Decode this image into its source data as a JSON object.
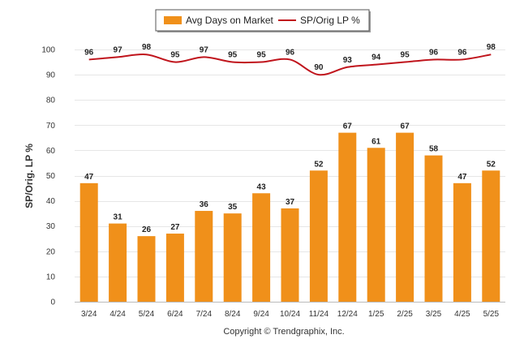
{
  "legend": {
    "bar_label": "Avg Days on Market",
    "line_label": "SP/Orig LP %"
  },
  "footer": {
    "copyright": "Copyright © Trendgraphix, Inc."
  },
  "colors": {
    "bar": "#F0901A",
    "line": "#C0141C",
    "grid": "#E6E6E6"
  },
  "chart_data": {
    "type": "bar",
    "categories": [
      "3/24",
      "4/24",
      "5/24",
      "6/24",
      "7/24",
      "8/24",
      "9/24",
      "10/24",
      "11/24",
      "12/24",
      "1/25",
      "2/25",
      "3/25",
      "4/25",
      "5/25"
    ],
    "series": [
      {
        "name": "Avg Days on Market",
        "type": "bar",
        "values": [
          47,
          31,
          26,
          27,
          36,
          35,
          43,
          37,
          52,
          67,
          61,
          67,
          58,
          47,
          52
        ]
      },
      {
        "name": "SP/Orig LP %",
        "type": "line",
        "values": [
          96,
          97,
          98,
          95,
          97,
          95,
          95,
          96,
          90,
          93,
          94,
          95,
          96,
          96,
          98
        ]
      }
    ],
    "ylabel": "SP/Orig. LP %",
    "ylim": [
      0,
      100
    ],
    "yticks": [
      0,
      10,
      20,
      30,
      40,
      50,
      60,
      70,
      80,
      90,
      100
    ],
    "grid": true,
    "legend_position": "top-center"
  }
}
